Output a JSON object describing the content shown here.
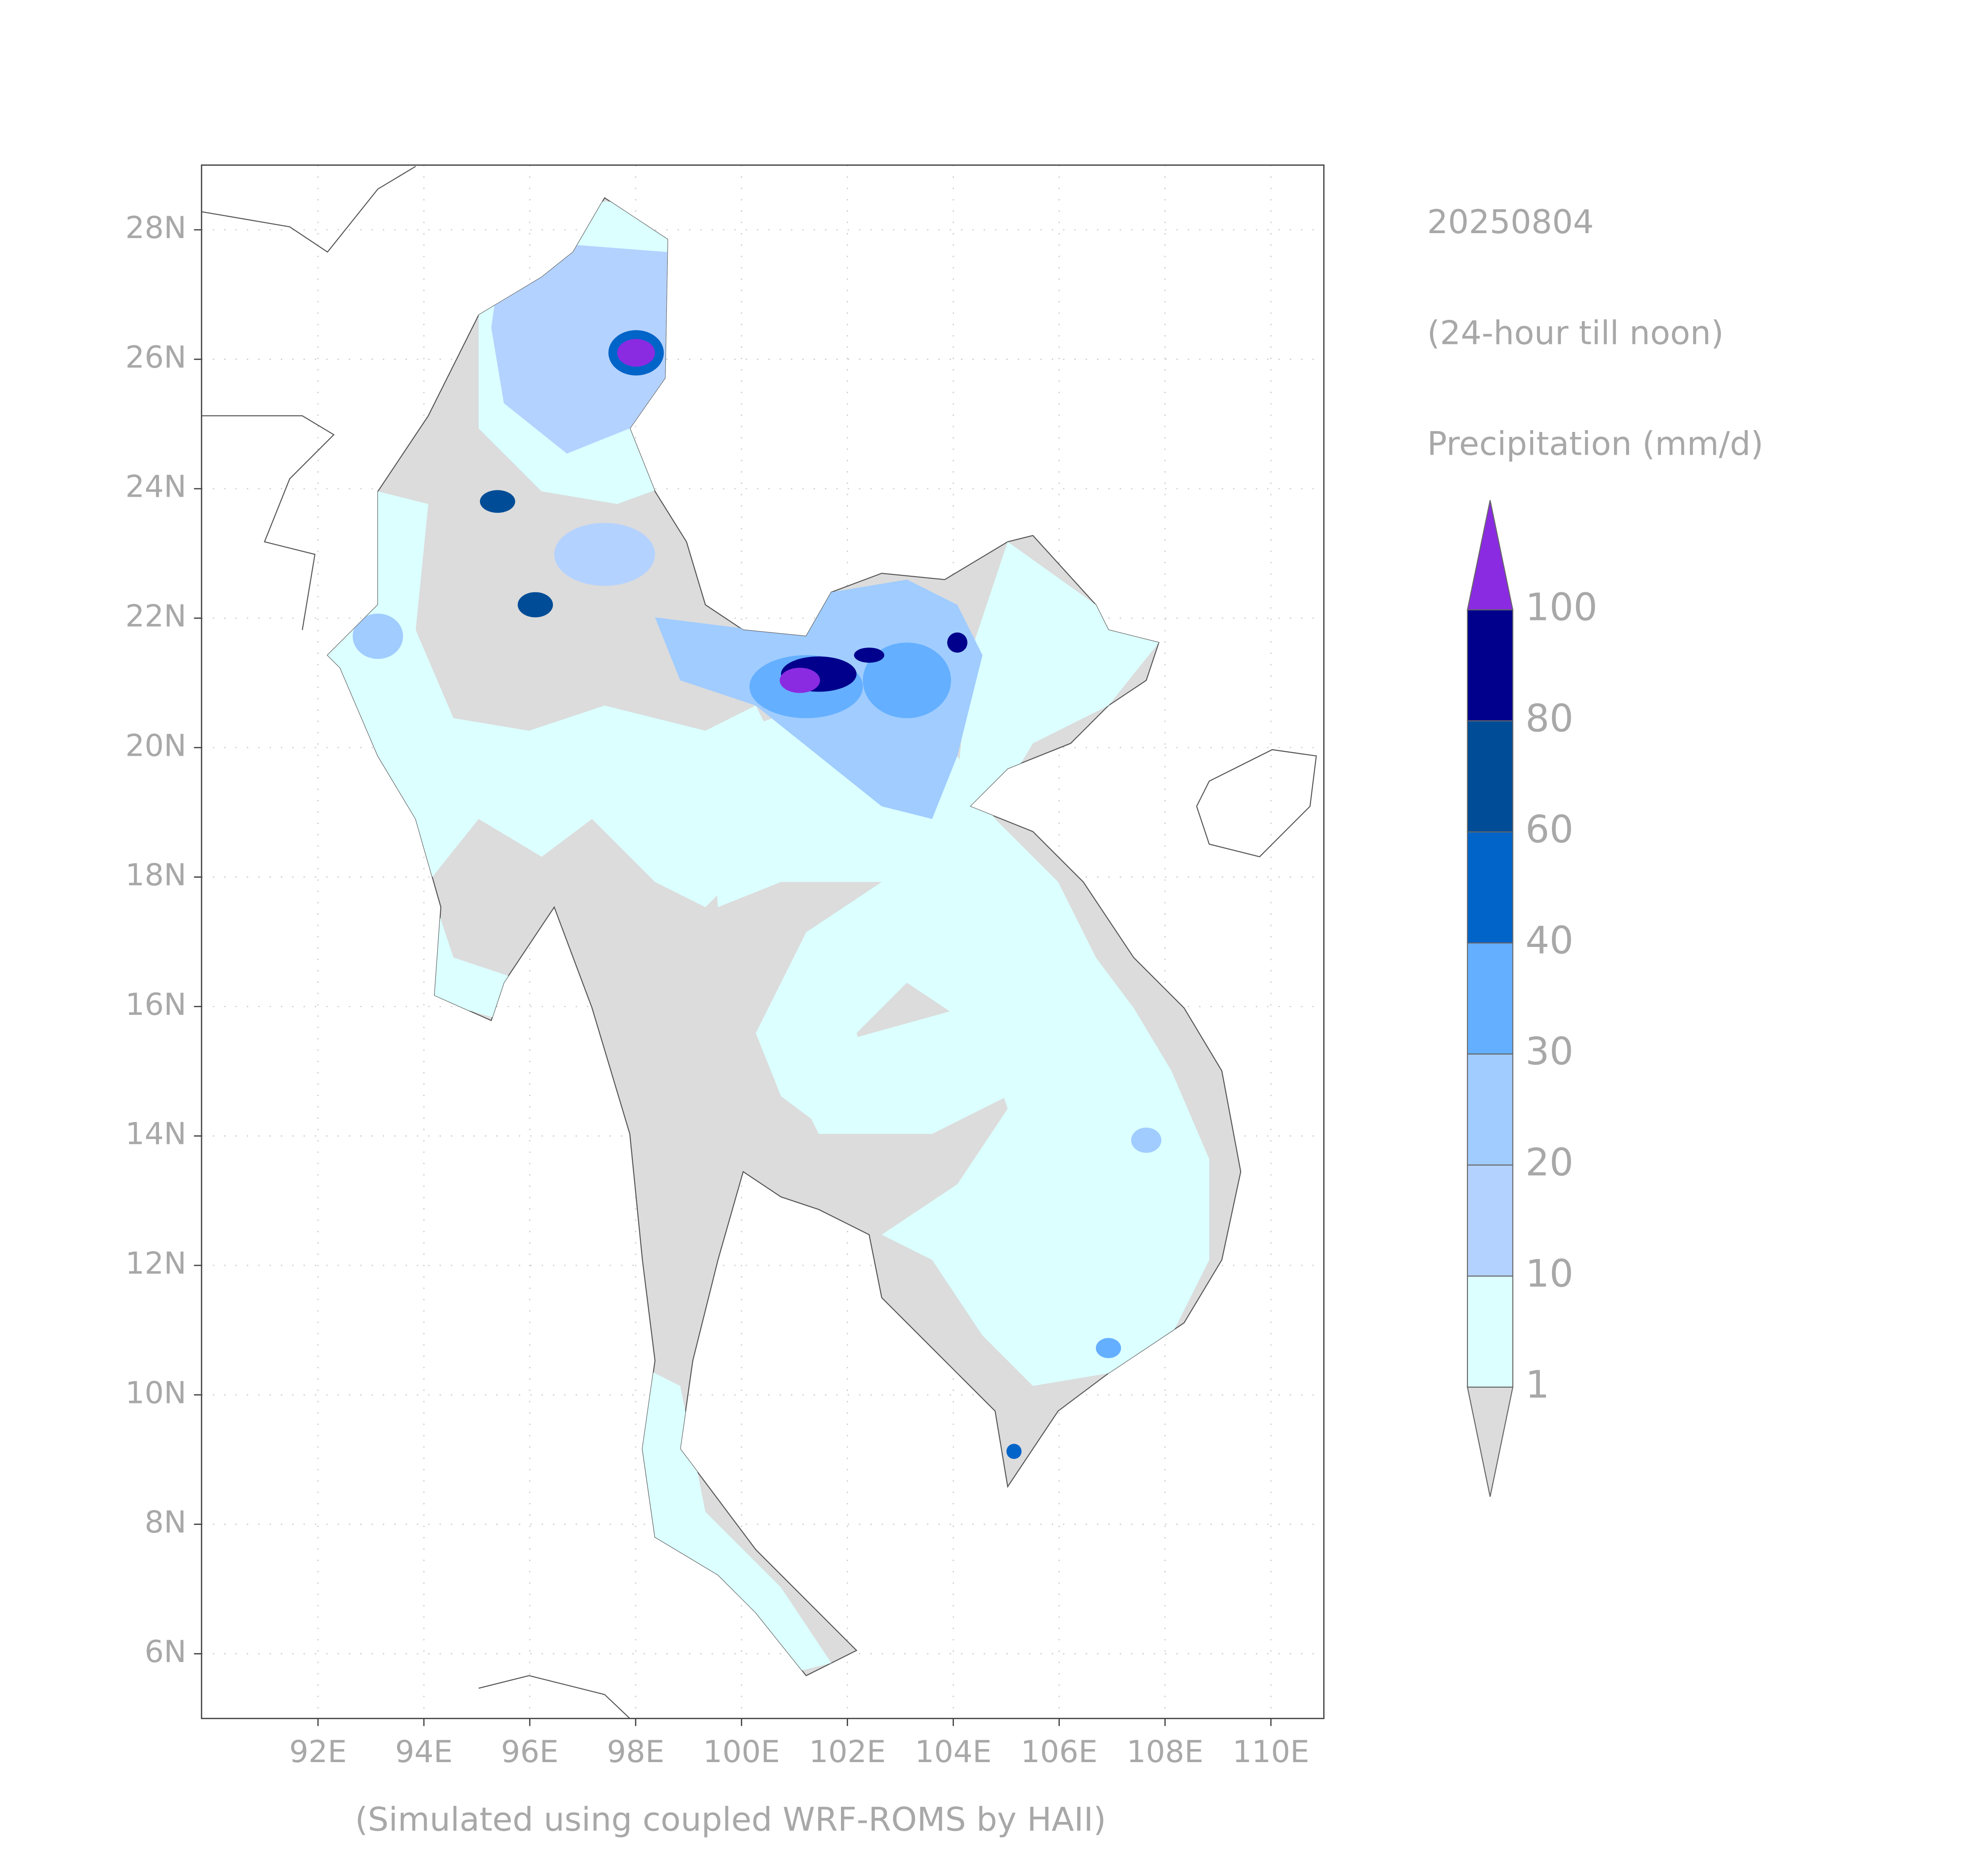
{
  "title": "20250804",
  "subtitle": "(24-hour till noon)",
  "variable": "Precipitation (mm/d)",
  "footer": "(Simulated using coupled WRF-ROMS by HAII)",
  "map": {
    "xlim": [
      89.8,
      111
    ],
    "ylim": [
      5,
      29
    ],
    "xticks": [
      {
        "value": 92,
        "label": "92E"
      },
      {
        "value": 94,
        "label": "94E"
      },
      {
        "value": 96,
        "label": "96E"
      },
      {
        "value": 98,
        "label": "98E"
      },
      {
        "value": 100,
        "label": "100E"
      },
      {
        "value": 102,
        "label": "102E"
      },
      {
        "value": 104,
        "label": "104E"
      },
      {
        "value": 106,
        "label": "106E"
      },
      {
        "value": 108,
        "label": "108E"
      },
      {
        "value": 110,
        "label": "110E"
      }
    ],
    "yticks": [
      {
        "value": 6,
        "label": "6N"
      },
      {
        "value": 8,
        "label": "8N"
      },
      {
        "value": 10,
        "label": "10N"
      },
      {
        "value": 12,
        "label": "12N"
      },
      {
        "value": 14,
        "label": "14N"
      },
      {
        "value": 16,
        "label": "16N"
      },
      {
        "value": 18,
        "label": "18N"
      },
      {
        "value": 20,
        "label": "20N"
      },
      {
        "value": 22,
        "label": "22N"
      },
      {
        "value": 24,
        "label": "24N"
      },
      {
        "value": 26,
        "label": "26N"
      },
      {
        "value": 28,
        "label": "28N"
      }
    ]
  },
  "colorbar": {
    "levels": [
      1,
      10,
      20,
      30,
      40,
      60,
      80,
      100
    ],
    "colors": [
      "#dcffff",
      "#b4d2ff",
      "#a0ccff",
      "#64afff",
      "#0064c8",
      "#004c97",
      "#00008c"
    ],
    "under_color": "#dcdcdc",
    "over_color": "#8a2be2"
  }
}
